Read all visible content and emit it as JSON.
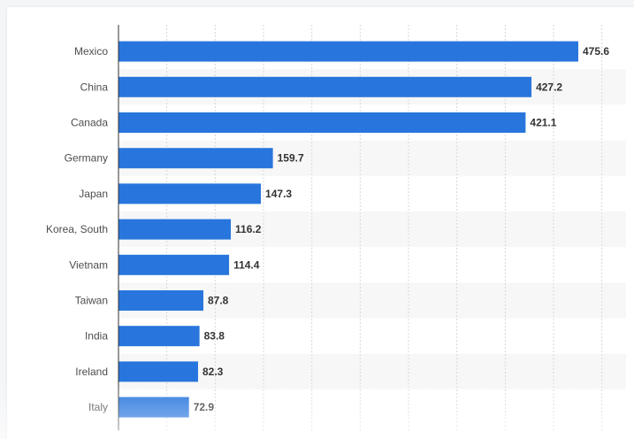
{
  "chart_data": {
    "type": "bar",
    "orientation": "horizontal",
    "categories": [
      "Mexico",
      "China",
      "Canada",
      "Germany",
      "Japan",
      "Korea, South",
      "Vietnam",
      "Taiwan",
      "India",
      "Ireland",
      "Italy"
    ],
    "values": [
      475.6,
      427.2,
      421.1,
      159.7,
      147.3,
      116.2,
      114.4,
      87.8,
      83.8,
      82.3,
      72.9
    ],
    "value_labels": [
      "475.6",
      "427.2",
      "421.1",
      "159.7",
      "147.3",
      "116.2",
      "114.4",
      "87.8",
      "83.8",
      "82.3",
      "72.9"
    ],
    "title": "",
    "xlabel": "",
    "ylabel": "",
    "xlim": [
      0,
      525
    ],
    "grid": true,
    "bar_color": "#2876dd",
    "alt_row_color": "#f7f7f7",
    "grid_color": "#d8d8d8"
  }
}
